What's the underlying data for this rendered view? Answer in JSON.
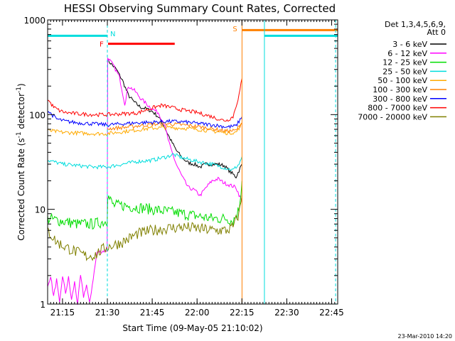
{
  "chart_data": {
    "type": "line",
    "title": "HESSI Observing Summary Count Rates, Corrected",
    "xlabel": "Start Time (09-May-05 21:10:02)",
    "ylabel": "Corrected Count Rate (s",
    "ylabel_sup1": "-1",
    "ylabel_mid": " detector",
    "ylabel_sup2": "-1",
    "ylabel_end": ")",
    "y_scale": "log",
    "ylim": [
      1,
      1000
    ],
    "xlim_minutes": [
      0,
      97
    ],
    "x_ticks": [
      {
        "label": "21:15",
        "minute": 4.97
      },
      {
        "label": "21:30",
        "minute": 19.97
      },
      {
        "label": "21:45",
        "minute": 34.97
      },
      {
        "label": "22:00",
        "minute": 49.97
      },
      {
        "label": "22:15",
        "minute": 64.97
      },
      {
        "label": "22:30",
        "minute": 79.97
      },
      {
        "label": "22:45",
        "minute": 94.97
      }
    ],
    "y_ticks": [
      {
        "label": "1",
        "value": 1
      },
      {
        "label": "10",
        "value": 10
      },
      {
        "label": "100",
        "value": 100
      },
      {
        "label": "1000",
        "value": 1000
      }
    ],
    "legend_header": [
      "Det 1,3,4,5,6,9,",
      "Att 0"
    ],
    "legend_placement": "right",
    "grid": false,
    "series": [
      {
        "name": "3 - 6 keV",
        "color": "#000000",
        "points": [
          [
            19.9,
            380
          ],
          [
            21,
            350
          ],
          [
            23,
            300
          ],
          [
            25,
            230
          ],
          [
            27,
            160
          ],
          [
            29,
            135
          ],
          [
            31,
            120
          ],
          [
            33,
            115
          ],
          [
            35,
            108
          ],
          [
            37,
            95
          ],
          [
            39,
            75
          ],
          [
            41,
            55
          ],
          [
            43,
            42
          ],
          [
            45,
            35
          ],
          [
            47,
            31
          ],
          [
            49,
            30
          ],
          [
            51,
            28
          ],
          [
            53,
            30
          ],
          [
            55,
            30
          ],
          [
            57,
            30
          ],
          [
            59,
            29
          ],
          [
            61,
            25
          ],
          [
            63,
            22
          ],
          [
            65,
            30
          ]
        ]
      },
      {
        "name": "6 - 12 keV",
        "color": "#ff00ff",
        "points": [
          [
            0,
            1.5
          ],
          [
            1,
            2
          ],
          [
            2,
            1.2
          ],
          [
            3,
            1.8
          ],
          [
            4,
            1
          ],
          [
            5,
            2
          ],
          [
            6,
            1.3
          ],
          [
            7,
            1.9
          ],
          [
            8,
            1.1
          ],
          [
            9,
            1.7
          ],
          [
            10,
            1
          ],
          [
            11,
            2
          ],
          [
            12,
            1.2
          ],
          [
            13,
            1.6
          ],
          [
            14,
            1
          ],
          [
            16.5,
            3.5
          ],
          [
            19.9,
            3.7
          ],
          [
            20.1,
            400
          ],
          [
            22,
            330
          ],
          [
            24,
            250
          ],
          [
            25.8,
            130
          ],
          [
            27,
            200
          ],
          [
            29,
            180
          ],
          [
            31,
            150
          ],
          [
            33,
            130
          ],
          [
            35,
            115
          ],
          [
            37,
            105
          ],
          [
            39,
            80
          ],
          [
            41,
            45
          ],
          [
            43,
            30
          ],
          [
            45,
            22
          ],
          [
            47,
            17
          ],
          [
            49,
            16
          ],
          [
            51,
            14
          ],
          [
            53,
            17
          ],
          [
            55,
            20
          ],
          [
            57,
            21
          ],
          [
            59,
            19
          ],
          [
            61,
            18
          ],
          [
            63,
            17
          ],
          [
            65,
            12
          ]
        ]
      },
      {
        "name": "12 - 25 keV",
        "color": "#00dd00",
        "points": [
          [
            0,
            8
          ],
          [
            5,
            7.5
          ],
          [
            10,
            7
          ],
          [
            15,
            7
          ],
          [
            19.9,
            7.5
          ],
          [
            20.1,
            14
          ],
          [
            22,
            11
          ],
          [
            25,
            11
          ],
          [
            30,
            10.5
          ],
          [
            35,
            10
          ],
          [
            40,
            9.5
          ],
          [
            45,
            9
          ],
          [
            50,
            8.5
          ],
          [
            55,
            8
          ],
          [
            60,
            8
          ],
          [
            62,
            7.5
          ],
          [
            64,
            10
          ],
          [
            65,
            20
          ]
        ]
      },
      {
        "name": "25 - 50 keV",
        "color": "#00dddd",
        "points": [
          [
            0,
            33
          ],
          [
            5,
            30
          ],
          [
            10,
            29
          ],
          [
            15,
            28
          ],
          [
            20,
            28
          ],
          [
            25,
            30
          ],
          [
            30,
            32
          ],
          [
            35,
            33
          ],
          [
            40,
            36
          ],
          [
            42,
            38
          ],
          [
            45,
            35
          ],
          [
            50,
            32
          ],
          [
            55,
            30
          ],
          [
            60,
            27
          ],
          [
            62,
            26
          ],
          [
            64,
            30
          ],
          [
            65,
            36
          ]
        ]
      },
      {
        "name": "50 - 100 keV",
        "color": "#ffaa00",
        "points": [
          [
            0,
            68
          ],
          [
            5,
            65
          ],
          [
            10,
            64
          ],
          [
            15,
            63
          ],
          [
            20,
            63
          ],
          [
            25,
            66
          ],
          [
            30,
            69
          ],
          [
            35,
            72
          ],
          [
            40,
            73
          ],
          [
            45,
            72
          ],
          [
            50,
            70
          ],
          [
            55,
            67
          ],
          [
            60,
            64
          ],
          [
            63,
            65
          ],
          [
            65,
            80
          ]
        ]
      },
      {
        "name": "100 - 300 keV",
        "color": "#ff8000",
        "points": [
          [
            20,
            71
          ],
          [
            25,
            73
          ],
          [
            30,
            76
          ],
          [
            35,
            79
          ],
          [
            40,
            80
          ],
          [
            45,
            78
          ],
          [
            50,
            75
          ],
          [
            55,
            71
          ],
          [
            60,
            67
          ],
          [
            63,
            68
          ],
          [
            65,
            82
          ]
        ]
      },
      {
        "name": "300 - 800 keV",
        "color": "#0000ff",
        "points": [
          [
            0,
            110
          ],
          [
            3,
            90
          ],
          [
            6,
            85
          ],
          [
            10,
            82
          ],
          [
            15,
            80
          ],
          [
            20,
            78
          ],
          [
            25,
            80
          ],
          [
            30,
            82
          ],
          [
            35,
            83
          ],
          [
            40,
            85
          ],
          [
            45,
            84
          ],
          [
            50,
            81
          ],
          [
            55,
            78
          ],
          [
            60,
            74
          ],
          [
            63,
            76
          ],
          [
            65,
            95
          ]
        ]
      },
      {
        "name": "800 - 7000 keV",
        "color": "#ff0000",
        "points": [
          [
            0,
            145
          ],
          [
            2,
            120
          ],
          [
            4,
            110
          ],
          [
            6,
            105
          ],
          [
            10,
            102
          ],
          [
            15,
            100
          ],
          [
            20,
            100
          ],
          [
            25,
            102
          ],
          [
            30,
            104
          ],
          [
            35,
            118
          ],
          [
            38,
            125
          ],
          [
            40,
            122
          ],
          [
            45,
            112
          ],
          [
            50,
            105
          ],
          [
            55,
            95
          ],
          [
            58,
            88
          ],
          [
            60,
            87
          ],
          [
            62,
            95
          ],
          [
            64,
            160
          ],
          [
            65,
            240
          ]
        ]
      },
      {
        "name": "7000 - 20000 keV",
        "color": "#808000",
        "points": [
          [
            0,
            6
          ],
          [
            3,
            4.5
          ],
          [
            6,
            4
          ],
          [
            10,
            3.5
          ],
          [
            13,
            3.2
          ],
          [
            16,
            3.3
          ],
          [
            18,
            3.7
          ],
          [
            20,
            4
          ],
          [
            22,
            4.2
          ],
          [
            25,
            4.5
          ],
          [
            30,
            5.5
          ],
          [
            35,
            6
          ],
          [
            40,
            6.3
          ],
          [
            45,
            6.5
          ],
          [
            50,
            6.3
          ],
          [
            55,
            6
          ],
          [
            60,
            6
          ],
          [
            62,
            6.5
          ],
          [
            64,
            9
          ],
          [
            65,
            14
          ]
        ]
      }
    ],
    "markers": {
      "N": {
        "label": "N",
        "color": "#00dddd",
        "x_minute": 19.97
      },
      "F": {
        "label": "F",
        "color": "#ff0000",
        "x_start": 20.2,
        "x_end": 42.5,
        "y": 560
      },
      "S": {
        "label": "S",
        "color": "#ff8000",
        "x_start": 65.0,
        "x_end": 97,
        "y": 780
      },
      "night_segments": [
        {
          "x_start": 0,
          "x_end": 19.97,
          "y": 680
        },
        {
          "x_start": 72.5,
          "x_end": 97,
          "y": 680
        }
      ],
      "dashed_lines": [
        19.97,
        96.3
      ],
      "solid_lines": [
        {
          "x": 65.0,
          "color": "#ff8000"
        },
        {
          "x": 72.5,
          "color": "#00dddd"
        }
      ]
    }
  },
  "timestamp": "23-Mar-2010 14:20"
}
